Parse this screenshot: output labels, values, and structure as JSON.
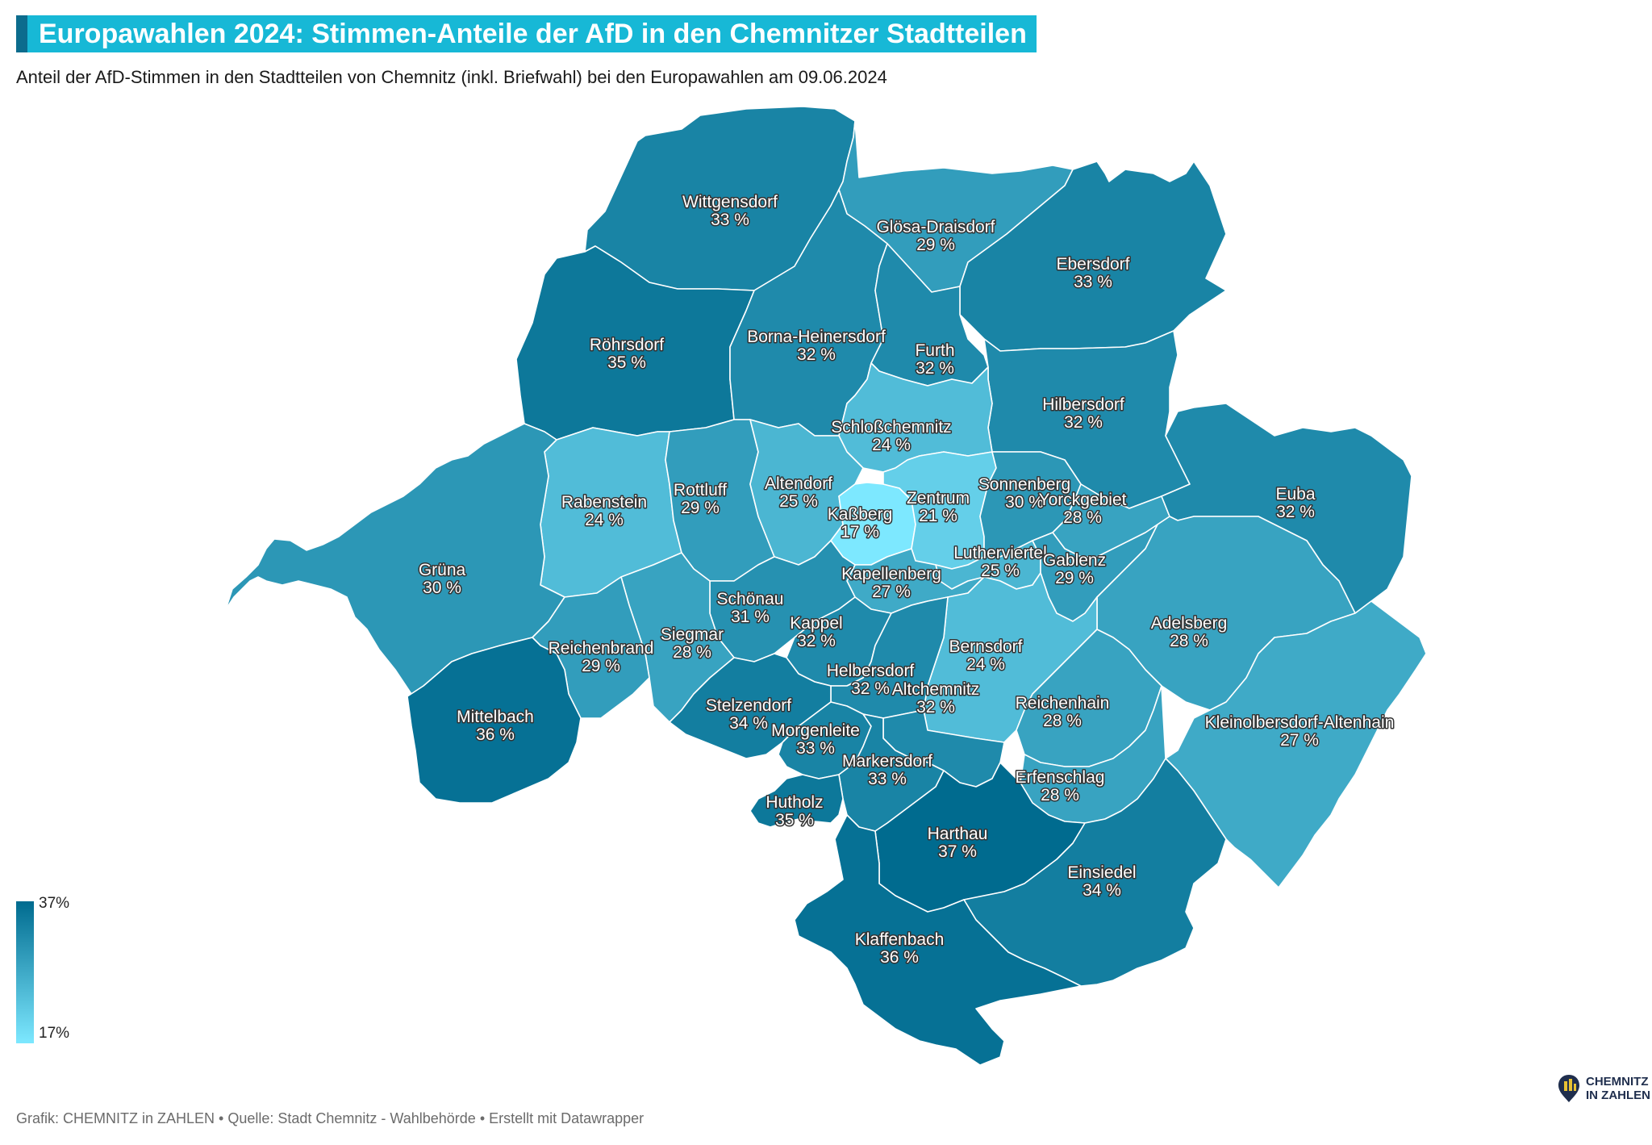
{
  "title": "Europawahlen 2024: Stimmen-Anteile der AfD in den Chemnitzer Stadtteilen",
  "subtitle": "Anteil der AfD-Stimmen in den Stadtteilen von Chemnitz (inkl. Briefwahl) bei den Europawahlen am 09.06.2024",
  "legend": {
    "max_label": "37%",
    "min_label": "17%",
    "max_value": 37,
    "min_value": 17,
    "color_low": "#7de8ff",
    "color_high": "#006b8f"
  },
  "footer": "Grafik: CHEMNITZ in ZAHLEN • Quelle: Stadt Chemnitz - Wahlbehörde • Erstellt mit Datawrapper",
  "logo": {
    "line1": "CHEMNITZ",
    "line2": "IN ZAHLEN",
    "icon": "chemnitz-in-zahlen-logo-icon"
  },
  "value_suffix": " %",
  "districts": [
    {
      "name": "Wittgensdorf",
      "value": 33
    },
    {
      "name": "Glösa-Draisdorf",
      "value": 29
    },
    {
      "name": "Ebersdorf",
      "value": 33
    },
    {
      "name": "Röhrsdorf",
      "value": 35
    },
    {
      "name": "Borna-Heinersdorf",
      "value": 32
    },
    {
      "name": "Furth",
      "value": 32
    },
    {
      "name": "Hilbersdorf",
      "value": 32
    },
    {
      "name": "Schloßchemnitz",
      "value": 24
    },
    {
      "name": "Rabenstein",
      "value": 24
    },
    {
      "name": "Rottluff",
      "value": 29
    },
    {
      "name": "Altendorf",
      "value": 25
    },
    {
      "name": "Kaßberg",
      "value": 17
    },
    {
      "name": "Zentrum",
      "value": 21
    },
    {
      "name": "Sonnenberg",
      "value": 30
    },
    {
      "name": "Yorckgebiet",
      "value": 28
    },
    {
      "name": "Euba",
      "value": 32
    },
    {
      "name": "Grüna",
      "value": 30
    },
    {
      "name": "Lutherviertel",
      "value": 25
    },
    {
      "name": "Gablenz",
      "value": 29
    },
    {
      "name": "Kapellenberg",
      "value": 27
    },
    {
      "name": "Schönau",
      "value": 31
    },
    {
      "name": "Kappel",
      "value": 32
    },
    {
      "name": "Siegmar",
      "value": 28
    },
    {
      "name": "Reichenbrand",
      "value": 29
    },
    {
      "name": "Adelsberg",
      "value": 28
    },
    {
      "name": "Bernsdorf",
      "value": 24
    },
    {
      "name": "Helbersdorf",
      "value": 32
    },
    {
      "name": "Altchemnitz",
      "value": 32
    },
    {
      "name": "Reichenhain",
      "value": 28
    },
    {
      "name": "Kleinolbersdorf-Altenhain",
      "value": 27
    },
    {
      "name": "Mittelbach",
      "value": 36
    },
    {
      "name": "Stelzendorf",
      "value": 34
    },
    {
      "name": "Morgenleite",
      "value": 33
    },
    {
      "name": "Markersdorf",
      "value": 33
    },
    {
      "name": "Erfenschlag",
      "value": 28
    },
    {
      "name": "Hutholz",
      "value": 35
    },
    {
      "name": "Harthau",
      "value": 37
    },
    {
      "name": "Einsiedel",
      "value": 34
    },
    {
      "name": "Klaffenbach",
      "value": 36
    }
  ]
}
